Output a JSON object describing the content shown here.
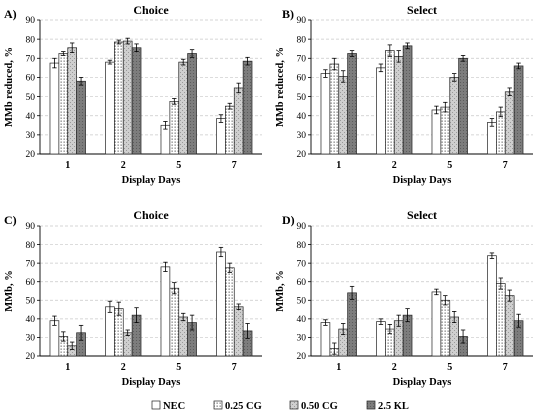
{
  "legend": [
    {
      "name": "NEC",
      "pattern": "white"
    },
    {
      "name": "0.25 CG",
      "pattern": "dots"
    },
    {
      "name": "0.50 CG",
      "pattern": "light"
    },
    {
      "name": "2.5 KL",
      "pattern": "dark"
    }
  ],
  "chart_data": [
    {
      "panel": "A)",
      "title": "Choice",
      "type": "bar",
      "xlabel": "Display Days",
      "ylabel": "MMb reduced, %",
      "ylim": [
        20,
        90
      ],
      "ytick_step": 10,
      "grid": true,
      "categories": [
        "1",
        "2",
        "5",
        "7"
      ],
      "series": [
        {
          "name": "NEC",
          "values": [
            67.5,
            68,
            35,
            38.5
          ],
          "errors": [
            2.5,
            1,
            2,
            2
          ]
        },
        {
          "name": "0.25 CG",
          "values": [
            72.5,
            78.5,
            47.5,
            45
          ],
          "errors": [
            1,
            1,
            1.5,
            1.5
          ]
        },
        {
          "name": "0.50 CG",
          "values": [
            75.5,
            79,
            68,
            54.5
          ],
          "errors": [
            2.5,
            1.5,
            1.5,
            2.5
          ]
        },
        {
          "name": "2.5 KL",
          "values": [
            58,
            75.5,
            72.5,
            68.5
          ],
          "errors": [
            2,
            2,
            2,
            2
          ]
        }
      ]
    },
    {
      "panel": "B)",
      "title": "Select",
      "type": "bar",
      "xlabel": "Display Days",
      "ylabel": "MMb reduced, %",
      "ylim": [
        20,
        90
      ],
      "ytick_step": 10,
      "grid": true,
      "categories": [
        "1",
        "2",
        "5",
        "7"
      ],
      "series": [
        {
          "name": "NEC",
          "values": [
            62,
            65,
            43,
            36.5
          ],
          "errors": [
            2,
            2,
            2,
            2
          ]
        },
        {
          "name": "0.25 CG",
          "values": [
            67,
            74,
            44.5,
            42
          ],
          "errors": [
            3,
            3,
            2.5,
            2.5
          ]
        },
        {
          "name": "0.50 CG",
          "values": [
            60.5,
            71,
            60,
            52.5
          ],
          "errors": [
            3,
            3,
            2,
            2
          ]
        },
        {
          "name": "2.5 KL",
          "values": [
            72.5,
            76.5,
            70,
            66
          ],
          "errors": [
            1.5,
            1.5,
            1.5,
            1.5
          ]
        }
      ]
    },
    {
      "panel": "C)",
      "title": "Choice",
      "type": "bar",
      "xlabel": "Display Days",
      "ylabel": "MMb, %",
      "ylim": [
        20,
        90
      ],
      "ytick_step": 10,
      "grid": true,
      "categories": [
        "1",
        "2",
        "5",
        "7"
      ],
      "series": [
        {
          "name": "NEC",
          "values": [
            39,
            46.5,
            68,
            76
          ],
          "errors": [
            2.5,
            3,
            2.5,
            2.5
          ]
        },
        {
          "name": "0.25 CG",
          "values": [
            30.5,
            45.5,
            56.5,
            67.5
          ],
          "errors": [
            2.5,
            3.5,
            3,
            2.5
          ]
        },
        {
          "name": "0.50 CG",
          "values": [
            25.5,
            32.5,
            41,
            46.5
          ],
          "errors": [
            2,
            1.5,
            2,
            1.5
          ]
        },
        {
          "name": "2.5 KL",
          "values": [
            32.5,
            42,
            38,
            33.5
          ],
          "errors": [
            4,
            4,
            4,
            4
          ]
        }
      ]
    },
    {
      "panel": "D)",
      "title": "Select",
      "type": "bar",
      "xlabel": "Display Days",
      "ylabel": "MMb, %",
      "ylim": [
        20,
        90
      ],
      "ytick_step": 10,
      "grid": true,
      "categories": [
        "1",
        "2",
        "5",
        "7"
      ],
      "series": [
        {
          "name": "NEC",
          "values": [
            38,
            38.5,
            54.5,
            74
          ],
          "errors": [
            1.5,
            1.5,
            1.5,
            1.5
          ]
        },
        {
          "name": "0.25 CG",
          "values": [
            24,
            34.5,
            50,
            59
          ],
          "errors": [
            3,
            2.5,
            2.5,
            3
          ]
        },
        {
          "name": "0.50 CG",
          "values": [
            34.5,
            39,
            41,
            52.5
          ],
          "errors": [
            3,
            3,
            3,
            3
          ]
        },
        {
          "name": "2.5 KL",
          "values": [
            54,
            42,
            30.5,
            39
          ],
          "errors": [
            3.5,
            3.5,
            3.5,
            3.5
          ]
        }
      ]
    }
  ]
}
